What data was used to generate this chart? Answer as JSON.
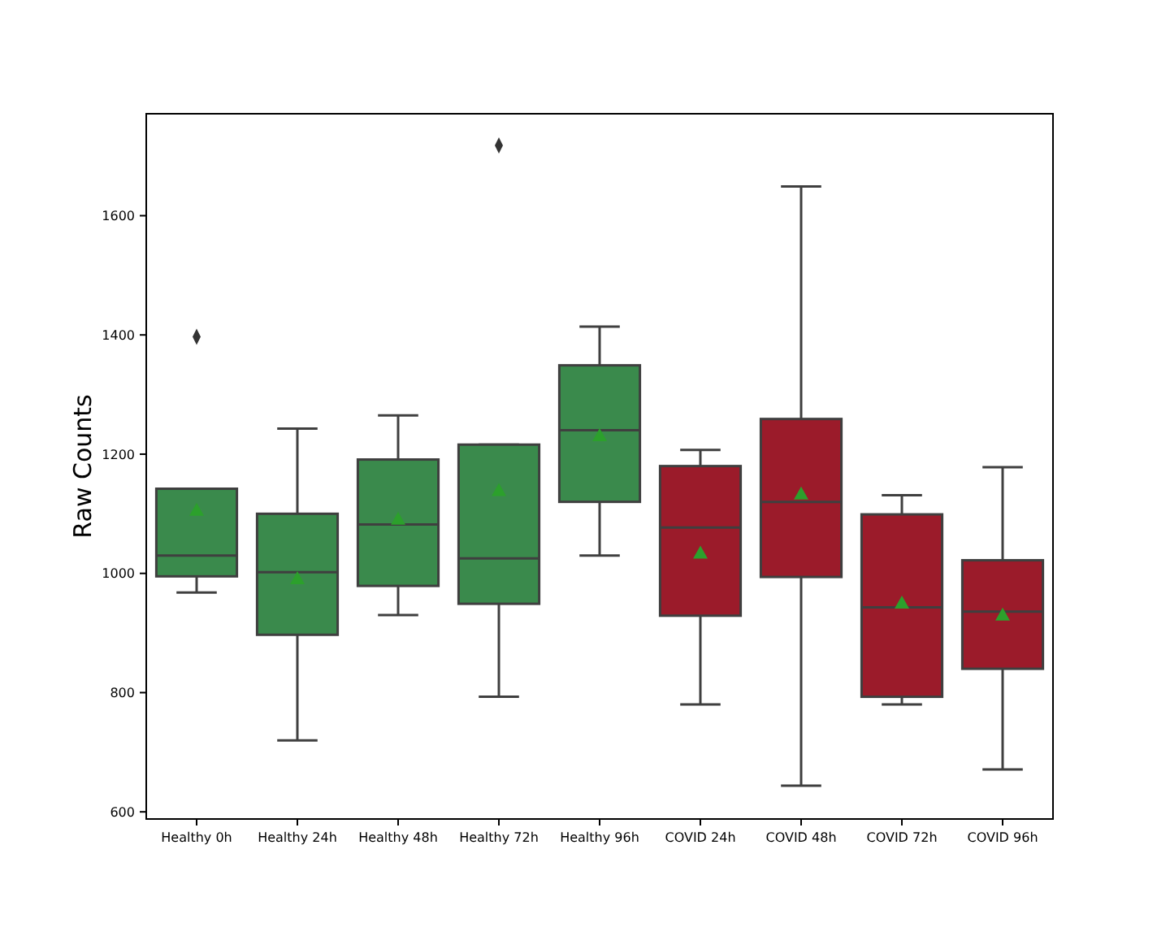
{
  "chart_data": {
    "type": "box",
    "ylabel": "Raw Counts",
    "categories": [
      "Healthy 0h",
      "Healthy 24h",
      "Healthy 48h",
      "Healthy 72h",
      "Healthy 96h",
      "COVID 24h",
      "COVID 48h",
      "COVID 72h",
      "COVID 96h"
    ],
    "colors": [
      "#3a8a4c",
      "#3a8a4c",
      "#3a8a4c",
      "#3a8a4c",
      "#3a8a4c",
      "#9b1b2a",
      "#9b1b2a",
      "#9b1b2a",
      "#9b1b2a"
    ],
    "boxes": [
      {
        "low": 968,
        "q1": 995,
        "median": 1030,
        "q3": 1142,
        "high": 1142,
        "mean": 1105,
        "outliers": [
          1397
        ]
      },
      {
        "low": 720,
        "q1": 897,
        "median": 1002,
        "q3": 1100,
        "high": 1243,
        "mean": 990
      },
      {
        "low": 930,
        "q1": 979,
        "median": 1082,
        "q3": 1191,
        "high": 1265,
        "mean": 1090
      },
      {
        "low": 793,
        "q1": 949,
        "median": 1025,
        "q3": 1216,
        "high": 1216,
        "mean": 1138,
        "outliers": [
          1718
        ]
      },
      {
        "low": 1030,
        "q1": 1120,
        "median": 1240,
        "q3": 1349,
        "high": 1414,
        "mean": 1230
      },
      {
        "low": 780,
        "q1": 929,
        "median": 1077,
        "q3": 1180,
        "high": 1207,
        "mean": 1033
      },
      {
        "low": 644,
        "q1": 994,
        "median": 1120,
        "q3": 1259,
        "high": 1649,
        "mean": 1132
      },
      {
        "low": 780,
        "q1": 793,
        "median": 943,
        "q3": 1099,
        "high": 1131,
        "mean": 949
      },
      {
        "low": 671,
        "q1": 840,
        "median": 936,
        "q3": 1022,
        "high": 1178,
        "mean": 929
      }
    ],
    "ylim": [
      588,
      1771
    ],
    "yticks": [
      600,
      800,
      1000,
      1200,
      1400,
      1600
    ],
    "grid": false
  }
}
